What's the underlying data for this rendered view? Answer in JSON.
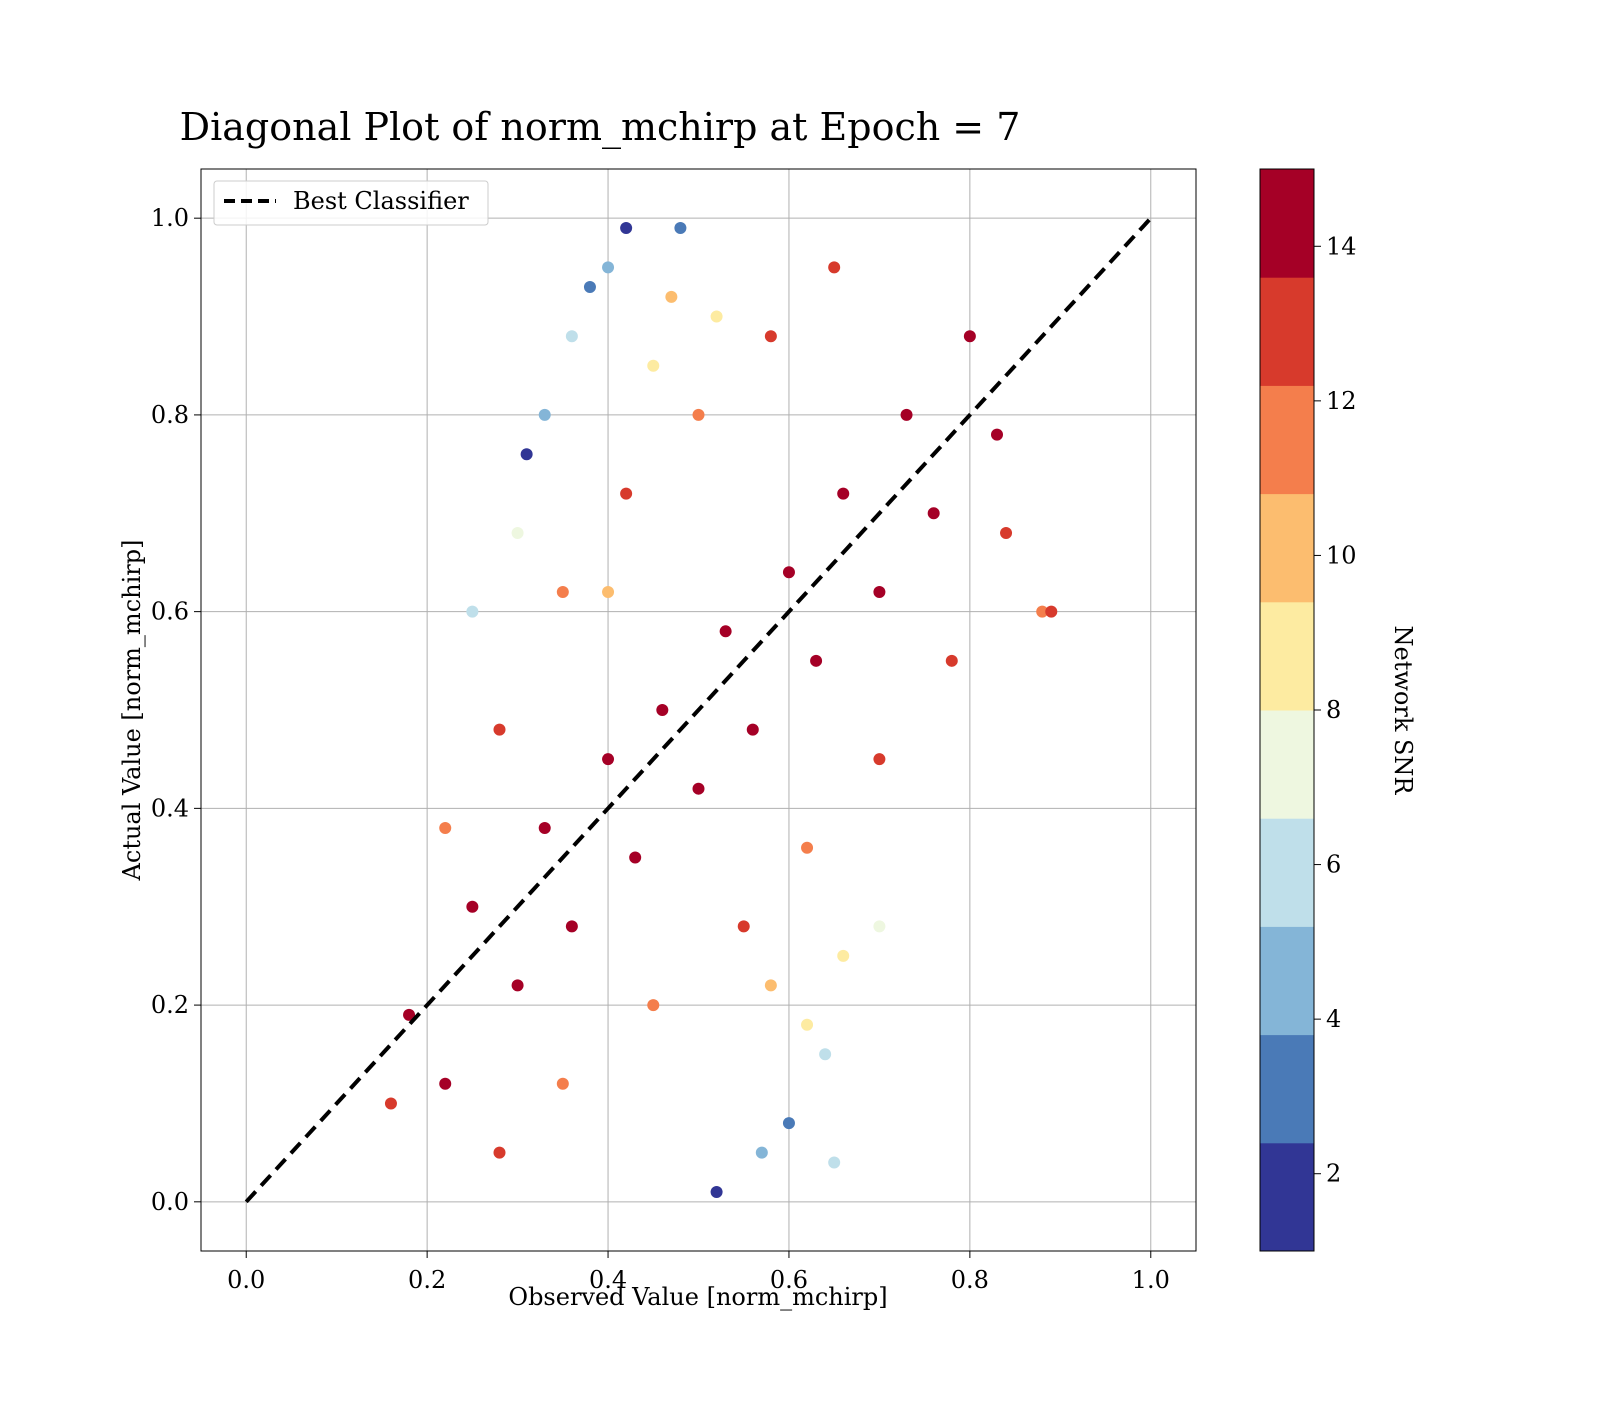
{
  "chart_data": {
    "type": "scatter",
    "title": "Diagonal Plot of norm_mchirp at Epoch = 7",
    "xlabel": "Observed Value [norm_mchirp]",
    "ylabel": "Actual Value [norm_mchirp]",
    "xlim": [
      -0.05,
      1.05
    ],
    "ylim": [
      -0.05,
      1.05
    ],
    "xticks": [
      0.0,
      0.2,
      0.4,
      0.6,
      0.8,
      1.0
    ],
    "yticks": [
      0.0,
      0.2,
      0.4,
      0.6,
      0.8,
      1.0
    ],
    "xtick_labels": [
      "0.0",
      "0.2",
      "0.4",
      "0.6",
      "0.8",
      "1.0"
    ],
    "ytick_labels": [
      "0.0",
      "0.2",
      "0.4",
      "0.6",
      "0.8",
      "1.0"
    ],
    "grid": true,
    "legend": {
      "placement": "upper-left",
      "entries": [
        "Best Classifier"
      ]
    },
    "reference_line": {
      "name": "Best Classifier",
      "style": "dashed",
      "color": "#000000",
      "x": [
        0.0,
        1.0
      ],
      "y": [
        0.0,
        1.0
      ]
    },
    "colorbar": {
      "label": "Network SNR",
      "range": [
        1,
        15
      ],
      "ticks": [
        2,
        4,
        6,
        8,
        10,
        12,
        14
      ],
      "tick_labels": [
        "2",
        "4",
        "6",
        "8",
        "10",
        "12",
        "14"
      ],
      "colormap": "RdYlBu_r",
      "bins": [
        {
          "from": 1.0,
          "to": 2.4,
          "color": "#313695"
        },
        {
          "from": 2.4,
          "to": 3.8,
          "color": "#4a7ab7"
        },
        {
          "from": 3.8,
          "to": 5.2,
          "color": "#84b5d7"
        },
        {
          "from": 5.2,
          "to": 6.6,
          "color": "#bfdfea"
        },
        {
          "from": 6.6,
          "to": 8.0,
          "color": "#eef7e0"
        },
        {
          "from": 8.0,
          "to": 9.4,
          "color": "#fdeba1"
        },
        {
          "from": 9.4,
          "to": 10.8,
          "color": "#fcbd6f"
        },
        {
          "from": 10.8,
          "to": 12.2,
          "color": "#f47e4c"
        },
        {
          "from": 12.2,
          "to": 13.6,
          "color": "#d73a2c"
        },
        {
          "from": 13.6,
          "to": 15.0,
          "color": "#a50026"
        }
      ]
    },
    "points": [
      {
        "x": 0.18,
        "y": 0.19,
        "snr": 14.5
      },
      {
        "x": 0.22,
        "y": 0.12,
        "snr": 14.5
      },
      {
        "x": 0.25,
        "y": 0.3,
        "snr": 14.5
      },
      {
        "x": 0.3,
        "y": 0.22,
        "snr": 14.5
      },
      {
        "x": 0.33,
        "y": 0.38,
        "snr": 14.5
      },
      {
        "x": 0.36,
        "y": 0.28,
        "snr": 14.5
      },
      {
        "x": 0.4,
        "y": 0.45,
        "snr": 14.5
      },
      {
        "x": 0.43,
        "y": 0.35,
        "snr": 14.5
      },
      {
        "x": 0.46,
        "y": 0.5,
        "snr": 14.5
      },
      {
        "x": 0.5,
        "y": 0.42,
        "snr": 14.5
      },
      {
        "x": 0.53,
        "y": 0.58,
        "snr": 14.5
      },
      {
        "x": 0.56,
        "y": 0.48,
        "snr": 14.5
      },
      {
        "x": 0.6,
        "y": 0.64,
        "snr": 14.5
      },
      {
        "x": 0.63,
        "y": 0.55,
        "snr": 14.5
      },
      {
        "x": 0.66,
        "y": 0.72,
        "snr": 14.5
      },
      {
        "x": 0.7,
        "y": 0.62,
        "snr": 14.5
      },
      {
        "x": 0.73,
        "y": 0.8,
        "snr": 14.5
      },
      {
        "x": 0.76,
        "y": 0.7,
        "snr": 14.5
      },
      {
        "x": 0.8,
        "y": 0.88,
        "snr": 14.5
      },
      {
        "x": 0.83,
        "y": 0.78,
        "snr": 14.5
      },
      {
        "x": 0.16,
        "y": 0.1,
        "snr": 12.8
      },
      {
        "x": 0.28,
        "y": 0.05,
        "snr": 12.8
      },
      {
        "x": 0.35,
        "y": 0.12,
        "snr": 11.5
      },
      {
        "x": 0.45,
        "y": 0.2,
        "snr": 11.5
      },
      {
        "x": 0.55,
        "y": 0.28,
        "snr": 12.8
      },
      {
        "x": 0.62,
        "y": 0.36,
        "snr": 11.5
      },
      {
        "x": 0.7,
        "y": 0.45,
        "snr": 12.8
      },
      {
        "x": 0.78,
        "y": 0.55,
        "snr": 12.8
      },
      {
        "x": 0.84,
        "y": 0.68,
        "snr": 12.8
      },
      {
        "x": 0.88,
        "y": 0.6,
        "snr": 11.5
      },
      {
        "x": 0.22,
        "y": 0.38,
        "snr": 11.5
      },
      {
        "x": 0.28,
        "y": 0.48,
        "snr": 12.8
      },
      {
        "x": 0.35,
        "y": 0.62,
        "snr": 11.5
      },
      {
        "x": 0.42,
        "y": 0.72,
        "snr": 12.8
      },
      {
        "x": 0.5,
        "y": 0.8,
        "snr": 11.5
      },
      {
        "x": 0.58,
        "y": 0.88,
        "snr": 12.8
      },
      {
        "x": 0.65,
        "y": 0.95,
        "snr": 12.8
      },
      {
        "x": 0.47,
        "y": 0.92,
        "snr": 10.1
      },
      {
        "x": 0.4,
        "y": 0.62,
        "snr": 10.1
      },
      {
        "x": 0.58,
        "y": 0.22,
        "snr": 10.1
      },
      {
        "x": 0.62,
        "y": 0.18,
        "snr": 8.7
      },
      {
        "x": 0.45,
        "y": 0.85,
        "snr": 8.7
      },
      {
        "x": 0.52,
        "y": 0.9,
        "snr": 8.7
      },
      {
        "x": 0.66,
        "y": 0.25,
        "snr": 8.7
      },
      {
        "x": 0.7,
        "y": 0.28,
        "snr": 7.3
      },
      {
        "x": 0.3,
        "y": 0.68,
        "snr": 7.3
      },
      {
        "x": 0.25,
        "y": 0.6,
        "snr": 5.9
      },
      {
        "x": 0.36,
        "y": 0.88,
        "snr": 5.9
      },
      {
        "x": 0.64,
        "y": 0.15,
        "snr": 5.9
      },
      {
        "x": 0.57,
        "y": 0.05,
        "snr": 4.5
      },
      {
        "x": 0.4,
        "y": 0.95,
        "snr": 4.5
      },
      {
        "x": 0.33,
        "y": 0.8,
        "snr": 4.5
      },
      {
        "x": 0.48,
        "y": 0.99,
        "snr": 3.1
      },
      {
        "x": 0.38,
        "y": 0.93,
        "snr": 3.1
      },
      {
        "x": 0.6,
        "y": 0.08,
        "snr": 3.1
      },
      {
        "x": 0.42,
        "y": 0.99,
        "snr": 1.7
      },
      {
        "x": 0.52,
        "y": 0.01,
        "snr": 1.7
      },
      {
        "x": 0.31,
        "y": 0.76,
        "snr": 1.7
      },
      {
        "x": 0.89,
        "y": 0.6,
        "snr": 12.8
      },
      {
        "x": 0.65,
        "y": 0.04,
        "snr": 5.9
      }
    ]
  }
}
